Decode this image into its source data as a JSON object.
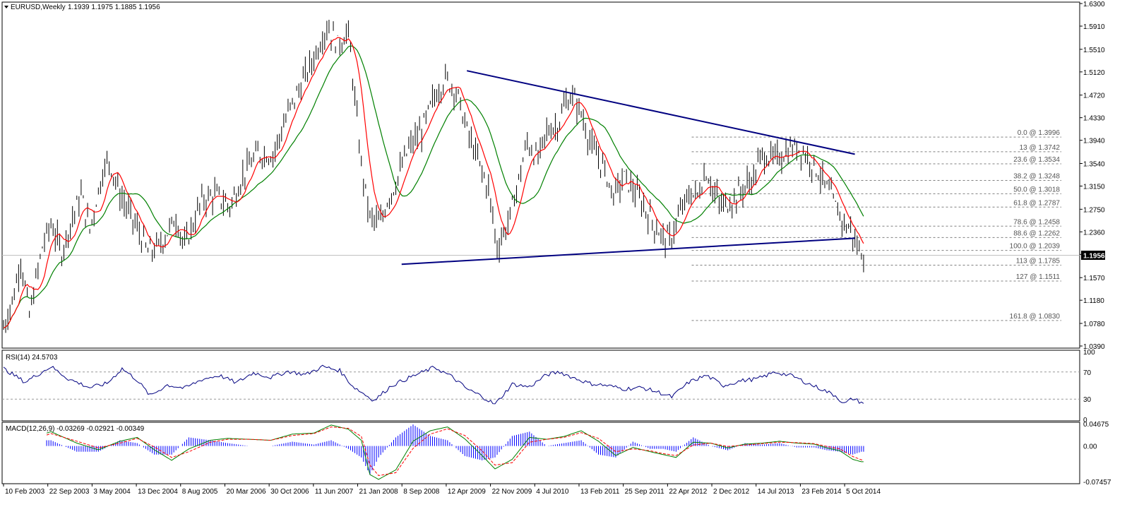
{
  "window": {
    "symbol_label": "EURUSD,Weekly",
    "ohlc_label": "1.1939 1.1975 1.1885 1.1956",
    "rsi_label": "RSI(14) 24.5703",
    "macd_label": "MACD(12,26,9) -0.03269 -0.02921 -0.00349",
    "last_price_label": "1.1956"
  },
  "colors": {
    "price_bars": "#000000",
    "ma_fast": "#ff0000",
    "ma_slow": "#008000",
    "ma_accent": "#ffcc00",
    "trendline": "#000080",
    "fib_lines": "#808080",
    "rsi_line": "#000080",
    "macd_hist": "#0000ff",
    "macd_line": "#008000",
    "macd_signal": "#ff0000",
    "last_price_bg": "#000000"
  },
  "chart_data": [
    {
      "type": "candlestick-ohlc",
      "title": "EURUSD,Weekly",
      "ylim": [
        1.039,
        1.63
      ],
      "y_ticks": [
        "1.6300",
        "1.5910",
        "1.5510",
        "1.5120",
        "1.4720",
        "1.4330",
        "1.3940",
        "1.3540",
        "1.3150",
        "1.2750",
        "1.2360",
        "1.1970",
        "1.1570",
        "1.1180",
        "1.0780",
        "1.0390"
      ],
      "x_ticks": [
        "10 Feb 2003",
        "22 Sep 2003",
        "3 May 2004",
        "13 Dec 2004",
        "8 Aug 2005",
        "20 Mar 2006",
        "30 Oct 2006",
        "11 Jun 2007",
        "21 Jan 2008",
        "8 Sep 2008",
        "12 Apr 2009",
        "22 Nov 2009",
        "4 Jul 2010",
        "13 Feb 2011",
        "25 Sep 2011",
        "22 Apr 2012",
        "2 Dec 2012",
        "14 Jul 2013",
        "23 Feb 2014",
        "5 Oct 2014"
      ],
      "price_path": [
        [
          0,
          1.07
        ],
        [
          5,
          1.13
        ],
        [
          8,
          1.19
        ],
        [
          12,
          1.09
        ],
        [
          18,
          1.21
        ],
        [
          22,
          1.25
        ],
        [
          27,
          1.2
        ],
        [
          31,
          1.25
        ],
        [
          36,
          1.3
        ],
        [
          40,
          1.24
        ],
        [
          46,
          1.34
        ],
        [
          49,
          1.36
        ],
        [
          54,
          1.3
        ],
        [
          61,
          1.25
        ],
        [
          67,
          1.2
        ],
        [
          72,
          1.21
        ],
        [
          80,
          1.26
        ],
        [
          84,
          1.21
        ],
        [
          92,
          1.29
        ],
        [
          98,
          1.3
        ],
        [
          105,
          1.28
        ],
        [
          112,
          1.34
        ],
        [
          118,
          1.37
        ],
        [
          125,
          1.37
        ],
        [
          133,
          1.45
        ],
        [
          142,
          1.52
        ],
        [
          150,
          1.59
        ],
        [
          155,
          1.56
        ],
        [
          160,
          1.58
        ],
        [
          166,
          1.35
        ],
        [
          170,
          1.26
        ],
        [
          175,
          1.25
        ],
        [
          178,
          1.29
        ],
        [
          182,
          1.32
        ],
        [
          188,
          1.38
        ],
        [
          194,
          1.41
        ],
        [
          200,
          1.47
        ],
        [
          205,
          1.5
        ],
        [
          210,
          1.48
        ],
        [
          215,
          1.41
        ],
        [
          220,
          1.36
        ],
        [
          225,
          1.31
        ],
        [
          229,
          1.21
        ],
        [
          234,
          1.25
        ],
        [
          238,
          1.31
        ],
        [
          243,
          1.39
        ],
        [
          248,
          1.36
        ],
        [
          252,
          1.41
        ],
        [
          257,
          1.42
        ],
        [
          261,
          1.46
        ],
        [
          264,
          1.47
        ],
        [
          268,
          1.44
        ],
        [
          273,
          1.38
        ],
        [
          278,
          1.35
        ],
        [
          283,
          1.3
        ],
        [
          288,
          1.33
        ],
        [
          292,
          1.31
        ],
        [
          297,
          1.28
        ],
        [
          300,
          1.26
        ],
        [
          305,
          1.23
        ],
        [
          309,
          1.22
        ],
        [
          313,
          1.26
        ],
        [
          318,
          1.3
        ],
        [
          322,
          1.3
        ],
        [
          326,
          1.34
        ],
        [
          330,
          1.3
        ],
        [
          333,
          1.28
        ],
        [
          338,
          1.29
        ],
        [
          343,
          1.31
        ],
        [
          348,
          1.33
        ],
        [
          352,
          1.37
        ],
        [
          357,
          1.36
        ],
        [
          362,
          1.37
        ],
        [
          366,
          1.38
        ],
        [
          370,
          1.38
        ],
        [
          374,
          1.36
        ],
        [
          378,
          1.34
        ],
        [
          382,
          1.31
        ],
        [
          386,
          1.28
        ],
        [
          390,
          1.25
        ],
        [
          393,
          1.24
        ],
        [
          396,
          1.21
        ],
        [
          398,
          1.2
        ]
      ],
      "series": [
        {
          "name": "",
          "key": "ma_fast"
        },
        {
          "name": "",
          "key": "ma_slow"
        }
      ],
      "trendlines": [
        {
          "x": [
            2009.5,
            2014.85
          ],
          "y": [
            1.514,
            1.37
          ]
        },
        {
          "x": [
            2008.6,
            2014.85
          ],
          "y": [
            1.18,
            1.225
          ]
        }
      ],
      "fibonacci": {
        "x_start": 2012.6,
        "x_end": 2014.85,
        "levels": [
          {
            "label": "0.0 @ 1.3996",
            "price": 1.3996
          },
          {
            "label": "13 @ 1.3742",
            "price": 1.3742
          },
          {
            "label": "23.6 @ 1.3534",
            "price": 1.3534
          },
          {
            "label": "38.2 @ 1.3248",
            "price": 1.3248
          },
          {
            "label": "50.0 @ 1.3018",
            "price": 1.3018
          },
          {
            "label": "61.8 @ 1.2787",
            "price": 1.2787
          },
          {
            "label": "78.6 @ 1.2458",
            "price": 1.2458
          },
          {
            "label": "88.6 @ 1.2262",
            "price": 1.2262
          },
          {
            "label": "100.0 @ 1.2039",
            "price": 1.2039
          },
          {
            "label": "113 @ 1.1785",
            "price": 1.1785
          },
          {
            "label": "127 @ 1.1511",
            "price": 1.1511
          },
          {
            "label": "161.8 @ 1.0830",
            "price": 1.083
          }
        ]
      },
      "last_price": 1.1956
    },
    {
      "type": "line",
      "title": "RSI(14) 24.5703",
      "ylim": [
        0,
        100
      ],
      "y_ticks": [
        "100",
        "70",
        "30",
        "0"
      ],
      "levels": [
        70,
        30
      ],
      "values_path": [
        [
          0,
          75
        ],
        [
          10,
          55
        ],
        [
          22,
          78
        ],
        [
          30,
          60
        ],
        [
          40,
          47
        ],
        [
          48,
          53
        ],
        [
          55,
          75
        ],
        [
          62,
          58
        ],
        [
          68,
          35
        ],
        [
          76,
          51
        ],
        [
          84,
          46
        ],
        [
          92,
          59
        ],
        [
          100,
          65
        ],
        [
          108,
          54
        ],
        [
          116,
          69
        ],
        [
          124,
          62
        ],
        [
          132,
          71
        ],
        [
          140,
          66
        ],
        [
          148,
          78
        ],
        [
          156,
          72
        ],
        [
          162,
          49
        ],
        [
          168,
          36
        ],
        [
          172,
          28
        ],
        [
          180,
          50
        ],
        [
          190,
          64
        ],
        [
          200,
          77
        ],
        [
          208,
          63
        ],
        [
          215,
          45
        ],
        [
          222,
          34
        ],
        [
          228,
          22
        ],
        [
          236,
          52
        ],
        [
          244,
          48
        ],
        [
          252,
          66
        ],
        [
          258,
          70
        ],
        [
          264,
          62
        ],
        [
          272,
          53
        ],
        [
          280,
          50
        ],
        [
          288,
          45
        ],
        [
          296,
          47
        ],
        [
          304,
          40
        ],
        [
          310,
          33
        ],
        [
          318,
          55
        ],
        [
          326,
          65
        ],
        [
          334,
          50
        ],
        [
          342,
          57
        ],
        [
          350,
          60
        ],
        [
          358,
          70
        ],
        [
          366,
          64
        ],
        [
          374,
          52
        ],
        [
          380,
          44
        ],
        [
          386,
          35
        ],
        [
          390,
          23
        ],
        [
          394,
          31
        ],
        [
          398,
          25
        ]
      ]
    },
    {
      "type": "bar+line",
      "title": "MACD(12,26,9) -0.03269 -0.02921 -0.00349",
      "ylim": [
        -0.07457,
        0.04675
      ],
      "y_ticks": [
        "0.04675",
        "0.00",
        "-0.07457"
      ],
      "macd_path": [
        [
          0,
          0.002
        ],
        [
          10,
          0.012
        ],
        [
          22,
          0.03
        ],
        [
          34,
          0.006
        ],
        [
          44,
          -0.008
        ],
        [
          54,
          0.01
        ],
        [
          62,
          0.018
        ],
        [
          70,
          -0.008
        ],
        [
          78,
          -0.03
        ],
        [
          86,
          -0.006
        ],
        [
          96,
          0.012
        ],
        [
          104,
          0.016
        ],
        [
          114,
          0.014
        ],
        [
          124,
          0.012
        ],
        [
          134,
          0.025
        ],
        [
          144,
          0.027
        ],
        [
          152,
          0.044
        ],
        [
          160,
          0.035
        ],
        [
          166,
          0.012
        ],
        [
          170,
          -0.06
        ],
        [
          174,
          -0.07
        ],
        [
          182,
          -0.05
        ],
        [
          190,
          0.01
        ],
        [
          198,
          0.032
        ],
        [
          206,
          0.04
        ],
        [
          214,
          0.015
        ],
        [
          222,
          -0.02
        ],
        [
          228,
          -0.048
        ],
        [
          236,
          -0.028
        ],
        [
          244,
          0.018
        ],
        [
          252,
          0.014
        ],
        [
          260,
          0.02
        ],
        [
          268,
          0.032
        ],
        [
          276,
          0.01
        ],
        [
          284,
          -0.02
        ],
        [
          292,
          -0.003
        ],
        [
          300,
          -0.012
        ],
        [
          306,
          -0.018
        ],
        [
          312,
          -0.024
        ],
        [
          320,
          0.008
        ],
        [
          328,
          0.006
        ],
        [
          336,
          -0.004
        ],
        [
          344,
          0.004
        ],
        [
          352,
          0.006
        ],
        [
          360,
          0.01
        ],
        [
          368,
          0.006
        ],
        [
          376,
          0.004
        ],
        [
          382,
          -0.004
        ],
        [
          388,
          -0.01
        ],
        [
          394,
          -0.028
        ],
        [
          398,
          -0.033
        ]
      ],
      "signal_path": [
        [
          0,
          0.0
        ],
        [
          10,
          0.008
        ],
        [
          22,
          0.026
        ],
        [
          34,
          0.01
        ],
        [
          44,
          -0.004
        ],
        [
          54,
          0.006
        ],
        [
          62,
          0.016
        ],
        [
          70,
          -0.002
        ],
        [
          78,
          -0.024
        ],
        [
          86,
          -0.012
        ],
        [
          96,
          0.008
        ],
        [
          104,
          0.014
        ],
        [
          114,
          0.014
        ],
        [
          124,
          0.012
        ],
        [
          134,
          0.022
        ],
        [
          144,
          0.026
        ],
        [
          152,
          0.04
        ],
        [
          160,
          0.037
        ],
        [
          166,
          0.02
        ],
        [
          170,
          -0.04
        ],
        [
          174,
          -0.062
        ],
        [
          182,
          -0.056
        ],
        [
          190,
          -0.005
        ],
        [
          198,
          0.025
        ],
        [
          206,
          0.036
        ],
        [
          214,
          0.022
        ],
        [
          222,
          -0.01
        ],
        [
          228,
          -0.04
        ],
        [
          236,
          -0.035
        ],
        [
          244,
          0.008
        ],
        [
          252,
          0.014
        ],
        [
          260,
          0.018
        ],
        [
          268,
          0.028
        ],
        [
          276,
          0.016
        ],
        [
          284,
          -0.012
        ],
        [
          292,
          -0.006
        ],
        [
          300,
          -0.01
        ],
        [
          306,
          -0.016
        ],
        [
          312,
          -0.02
        ],
        [
          320,
          0.002
        ],
        [
          328,
          0.006
        ],
        [
          336,
          -0.001
        ],
        [
          344,
          0.002
        ],
        [
          352,
          0.005
        ],
        [
          360,
          0.008
        ],
        [
          368,
          0.007
        ],
        [
          376,
          0.005
        ],
        [
          382,
          -0.001
        ],
        [
          388,
          -0.006
        ],
        [
          394,
          -0.022
        ],
        [
          398,
          -0.029
        ]
      ]
    }
  ]
}
